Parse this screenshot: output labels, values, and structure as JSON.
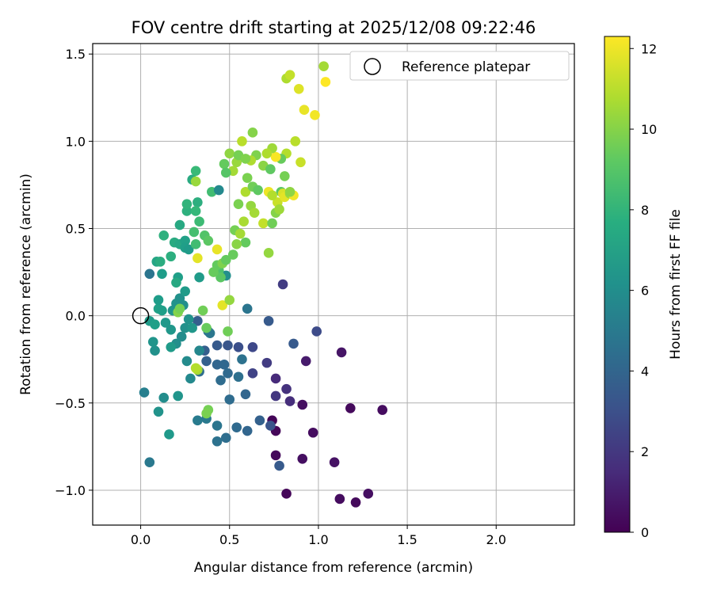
{
  "chart_data": {
    "type": "scatter",
    "title": "FOV centre drift starting at 2025/12/08 09:22:46",
    "xlabel": "Angular distance from reference (arcmin)",
    "ylabel": "Rotation from reference (arcmin)",
    "xlim": [
      -0.27,
      2.44
    ],
    "ylim": [
      -1.2,
      1.56
    ],
    "xticks": [
      0.0,
      0.5,
      1.0,
      1.5,
      2.0
    ],
    "xtick_labels": [
      "0.0",
      "0.5",
      "1.0",
      "1.5",
      "2.0"
    ],
    "yticks": [
      -1.0,
      -0.5,
      0.0,
      0.5,
      1.0,
      1.5
    ],
    "ytick_labels": [
      "−1.0",
      "−0.5",
      "0.0",
      "0.5",
      "1.0",
      "1.5"
    ],
    "grid": true,
    "legend": {
      "location": "top-right",
      "entries": [
        "Reference platepar"
      ]
    },
    "reference_point": {
      "x": 0.0,
      "y": 0.0
    },
    "colorbar": {
      "label": "Hours from first FF file",
      "min": 0,
      "max": 12.3,
      "ticks": [
        0,
        2,
        4,
        6,
        8,
        10,
        12
      ],
      "tick_labels": [
        "0",
        "2",
        "4",
        "6",
        "8",
        "10",
        "12"
      ],
      "colormap": "viridis"
    },
    "points": [
      [
        1.21,
        -1.07,
        0.3
      ],
      [
        1.28,
        -1.02,
        0.5
      ],
      [
        1.12,
        -1.05,
        0.4
      ],
      [
        0.82,
        -1.02,
        0.2
      ],
      [
        1.09,
        -0.84,
        0.6
      ],
      [
        0.91,
        -0.82,
        0.5
      ],
      [
        0.76,
        -0.8,
        0.3
      ],
      [
        0.97,
        -0.67,
        0.4
      ],
      [
        0.76,
        -0.66,
        0.2
      ],
      [
        0.74,
        -0.6,
        0.1
      ],
      [
        1.18,
        -0.53,
        0.3
      ],
      [
        1.36,
        -0.54,
        0.4
      ],
      [
        0.91,
        -0.51,
        0.5
      ],
      [
        1.13,
        -0.21,
        0.7
      ],
      [
        0.93,
        -0.26,
        0.9
      ],
      [
        0.78,
        -0.86,
        3.5
      ],
      [
        0.73,
        -0.63,
        3.2
      ],
      [
        0.67,
        -0.6,
        3.8
      ],
      [
        0.6,
        -0.66,
        4.0
      ],
      [
        0.54,
        -0.64,
        4.2
      ],
      [
        0.48,
        -0.7,
        4.4
      ],
      [
        0.43,
        -0.72,
        4.6
      ],
      [
        0.43,
        -0.63,
        4.8
      ],
      [
        0.37,
        -0.59,
        5.0
      ],
      [
        0.32,
        -0.6,
        5.1
      ],
      [
        0.5,
        -0.48,
        4.3
      ],
      [
        0.59,
        -0.45,
        4.0
      ],
      [
        0.76,
        -0.46,
        2.0
      ],
      [
        0.82,
        -0.42,
        1.8
      ],
      [
        0.84,
        -0.49,
        1.6
      ],
      [
        0.76,
        -0.36,
        1.5
      ],
      [
        0.71,
        -0.27,
        2.2
      ],
      [
        0.63,
        -0.33,
        2.5
      ],
      [
        0.63,
        -0.18,
        2.7
      ],
      [
        0.55,
        -0.18,
        3.0
      ],
      [
        0.49,
        -0.17,
        3.3
      ],
      [
        0.43,
        -0.17,
        3.5
      ],
      [
        0.36,
        -0.2,
        3.7
      ],
      [
        0.37,
        -0.26,
        3.8
      ],
      [
        0.43,
        -0.28,
        4.0
      ],
      [
        0.47,
        -0.28,
        4.1
      ],
      [
        0.49,
        -0.33,
        4.2
      ],
      [
        0.45,
        -0.37,
        4.3
      ],
      [
        0.33,
        -0.32,
        4.4
      ],
      [
        0.55,
        -0.35,
        4.5
      ],
      [
        0.57,
        -0.25,
        4.6
      ],
      [
        0.86,
        -0.16,
        3.5
      ],
      [
        0.99,
        -0.09,
        2.8
      ],
      [
        0.72,
        -0.03,
        3.5
      ],
      [
        0.8,
        0.18,
        2.2
      ],
      [
        0.6,
        0.04,
        4.8
      ],
      [
        0.32,
        -0.03,
        3.7
      ],
      [
        0.38,
        -0.09,
        4.6
      ],
      [
        0.39,
        -0.1,
        4.9
      ],
      [
        0.05,
        -0.84,
        5.0
      ],
      [
        0.02,
        -0.44,
        5.3
      ],
      [
        0.05,
        0.24,
        4.8
      ],
      [
        0.13,
        -0.47,
        6.0
      ],
      [
        0.1,
        -0.55,
        6.3
      ],
      [
        0.16,
        -0.68,
        6.6
      ],
      [
        0.21,
        -0.46,
        6.4
      ],
      [
        0.26,
        -0.26,
        5.9
      ],
      [
        0.33,
        -0.2,
        5.7
      ],
      [
        0.28,
        -0.36,
        5.8
      ],
      [
        0.2,
        -0.16,
        6.1
      ],
      [
        0.17,
        -0.18,
        6.7
      ],
      [
        0.08,
        -0.2,
        6.2
      ],
      [
        0.07,
        -0.15,
        6.4
      ],
      [
        0.05,
        -0.03,
        6.7
      ],
      [
        0.08,
        -0.05,
        6.9
      ],
      [
        0.1,
        0.04,
        7.0
      ],
      [
        0.12,
        0.03,
        6.9
      ],
      [
        0.1,
        0.09,
        6.8
      ],
      [
        0.14,
        -0.04,
        6.6
      ],
      [
        0.17,
        -0.08,
        6.5
      ],
      [
        0.18,
        0.03,
        6.4
      ],
      [
        0.2,
        0.07,
        6.3
      ],
      [
        0.22,
        0.1,
        6.2
      ],
      [
        0.24,
        0.06,
        6.1
      ],
      [
        0.23,
        -0.12,
        6.0
      ],
      [
        0.25,
        -0.07,
        6.2
      ],
      [
        0.27,
        -0.02,
        6.3
      ],
      [
        0.29,
        -0.07,
        6.5
      ],
      [
        0.25,
        0.14,
        6.7
      ],
      [
        0.21,
        0.22,
        6.9
      ],
      [
        0.2,
        0.19,
        7.4
      ],
      [
        0.12,
        0.24,
        6.8
      ],
      [
        0.09,
        0.31,
        7.2
      ],
      [
        0.11,
        0.31,
        7.6
      ],
      [
        0.17,
        0.34,
        7.7
      ],
      [
        0.13,
        0.46,
        7.8
      ],
      [
        0.19,
        0.42,
        7.5
      ],
      [
        0.22,
        0.41,
        7.3
      ],
      [
        0.25,
        0.43,
        7.0
      ],
      [
        0.25,
        0.39,
        6.9
      ],
      [
        0.27,
        0.38,
        6.7
      ],
      [
        0.22,
        0.52,
        7.4
      ],
      [
        0.26,
        0.6,
        7.8
      ],
      [
        0.26,
        0.64,
        8.0
      ],
      [
        0.32,
        0.65,
        7.7
      ],
      [
        0.31,
        0.6,
        8.2
      ],
      [
        0.33,
        0.54,
        8.4
      ],
      [
        0.3,
        0.48,
        8.6
      ],
      [
        0.31,
        0.41,
        8.5
      ],
      [
        0.33,
        0.22,
        6.7
      ],
      [
        0.36,
        0.46,
        8.9
      ],
      [
        0.38,
        0.43,
        9.1
      ],
      [
        0.4,
        0.71,
        8.5
      ],
      [
        0.44,
        0.72,
        5.8
      ],
      [
        0.29,
        0.78,
        7.5
      ],
      [
        0.31,
        0.77,
        10.4
      ],
      [
        0.31,
        0.83,
        8.3
      ],
      [
        0.48,
        0.23,
        6.1
      ],
      [
        0.44,
        0.26,
        8.8
      ],
      [
        0.45,
        0.22,
        9.1
      ],
      [
        0.43,
        0.29,
        9.3
      ],
      [
        0.41,
        0.25,
        9.4
      ],
      [
        0.21,
        0.02,
        10.0
      ],
      [
        0.22,
        0.04,
        9.7
      ],
      [
        0.35,
        0.03,
        9.6
      ],
      [
        0.37,
        -0.07,
        9.4
      ],
      [
        0.49,
        -0.09,
        9.6
      ],
      [
        0.46,
        0.06,
        11.8
      ],
      [
        0.5,
        0.09,
        10.3
      ],
      [
        0.32,
        -0.31,
        10.6
      ],
      [
        0.31,
        -0.3,
        10.9
      ],
      [
        0.38,
        -0.54,
        9.7
      ],
      [
        0.37,
        -0.56,
        9.8
      ],
      [
        0.32,
        0.33,
        11.8
      ],
      [
        0.43,
        0.38,
        11.9
      ],
      [
        0.46,
        0.3,
        9.9
      ],
      [
        0.48,
        0.32,
        9.3
      ],
      [
        0.52,
        0.35,
        9.4
      ],
      [
        0.53,
        0.49,
        9.7
      ],
      [
        0.56,
        0.47,
        10.6
      ],
      [
        0.59,
        0.42,
        9.3
      ],
      [
        0.54,
        0.41,
        10.1
      ],
      [
        0.55,
        0.64,
        9.8
      ],
      [
        0.58,
        0.54,
        10.7
      ],
      [
        0.59,
        0.71,
        10.8
      ],
      [
        0.6,
        0.79,
        9.8
      ],
      [
        0.63,
        0.74,
        9.6
      ],
      [
        0.62,
        0.63,
        10.3
      ],
      [
        0.64,
        0.59,
        10.6
      ],
      [
        0.66,
        0.72,
        9.2
      ],
      [
        0.69,
        0.53,
        11.2
      ],
      [
        0.72,
        0.36,
        10.3
      ],
      [
        0.74,
        0.53,
        9.6
      ],
      [
        0.76,
        0.59,
        10.0
      ],
      [
        0.77,
        0.65,
        11.3
      ],
      [
        0.78,
        0.61,
        10.5
      ],
      [
        0.79,
        0.71,
        9.1
      ],
      [
        0.8,
        0.7,
        11.6
      ],
      [
        0.81,
        0.68,
        11.8
      ],
      [
        0.72,
        0.71,
        12.0
      ],
      [
        0.74,
        0.69,
        10.9
      ],
      [
        0.84,
        0.7,
        10.4
      ],
      [
        0.86,
        0.69,
        12.1
      ],
      [
        0.81,
        0.8,
        9.7
      ],
      [
        0.82,
        0.93,
        10.9
      ],
      [
        0.84,
        0.71,
        10.2
      ],
      [
        0.87,
        1.0,
        11.0
      ],
      [
        0.9,
        0.88,
        11.3
      ],
      [
        0.79,
        0.9,
        9.4
      ],
      [
        0.76,
        0.91,
        12.2
      ],
      [
        0.74,
        0.96,
        10.5
      ],
      [
        0.71,
        0.93,
        10.8
      ],
      [
        0.69,
        0.86,
        10.1
      ],
      [
        0.65,
        0.92,
        9.9
      ],
      [
        0.62,
        0.89,
        10.8
      ],
      [
        0.57,
        1.0,
        11.0
      ],
      [
        0.54,
        0.88,
        10.4
      ],
      [
        0.52,
        0.83,
        10.6
      ],
      [
        0.5,
        0.93,
        10.2
      ],
      [
        0.47,
        0.87,
        9.3
      ],
      [
        0.48,
        0.82,
        9.0
      ],
      [
        0.55,
        0.92,
        9.7
      ],
      [
        0.59,
        0.9,
        9.9
      ],
      [
        0.63,
        1.05,
        10.0
      ],
      [
        0.73,
        0.84,
        9.2
      ],
      [
        0.82,
        1.36,
        10.8
      ],
      [
        0.84,
        1.38,
        11.2
      ],
      [
        0.89,
        1.3,
        11.7
      ],
      [
        0.92,
        1.18,
        11.9
      ],
      [
        0.98,
        1.15,
        12.1
      ],
      [
        1.03,
        1.43,
        10.6
      ],
      [
        1.04,
        1.34,
        12.3
      ]
    ]
  }
}
